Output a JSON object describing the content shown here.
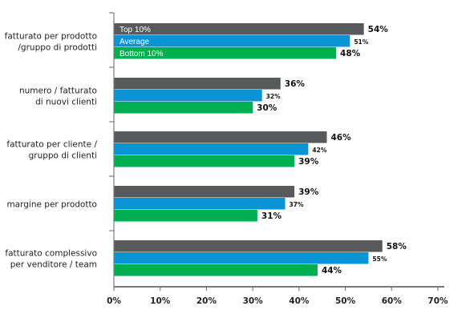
{
  "chart_data": {
    "type": "bar",
    "orientation": "horizontal",
    "categories": [
      [
        "fatturato per prodotto",
        "/gruppo di prodotti"
      ],
      [
        "numero / fatturato",
        "di nuovi clienti"
      ],
      [
        "fatturato per cliente /",
        "gruppo di clienti"
      ],
      [
        "margine per prodotto"
      ],
      [
        "fatturato complessivo",
        "per venditore / team"
      ]
    ],
    "series": [
      {
        "name": "Top 10%",
        "color": "#58595b",
        "values": [
          54,
          36,
          46,
          39,
          58
        ],
        "labels": [
          "54%",
          "36%",
          "46%",
          "39%",
          "58%"
        ]
      },
      {
        "name": "Average",
        "color": "#0a94d6",
        "values": [
          51,
          32,
          42,
          37,
          55
        ],
        "labels": [
          "51%",
          "32%",
          "42%",
          "37%",
          "55%"
        ]
      },
      {
        "name": "Bottom 10%",
        "color": "#00b050",
        "values": [
          48,
          30,
          39,
          31,
          44
        ],
        "labels": [
          "48%",
          "30%",
          "39%",
          "31%",
          "44%"
        ]
      }
    ],
    "xlim": [
      0,
      70
    ],
    "xticks": [
      "0%",
      "10%",
      "20%",
      "30%",
      "40%",
      "50%",
      "60%",
      "70%"
    ],
    "legend": "inside-top-left",
    "grid": false
  }
}
